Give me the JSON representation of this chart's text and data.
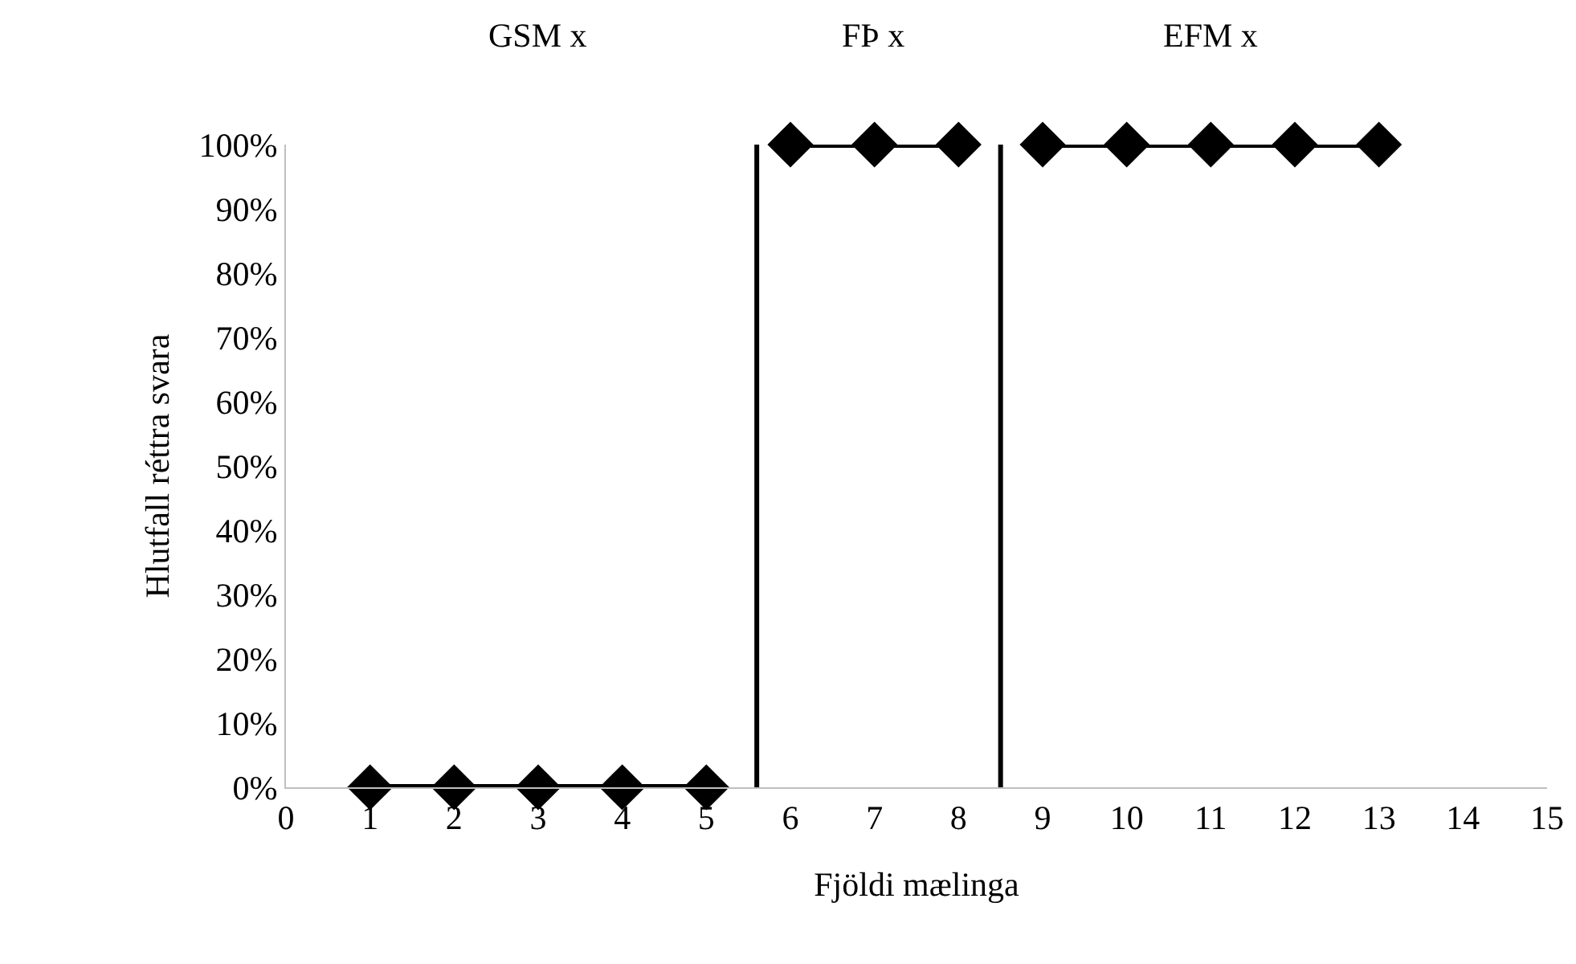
{
  "chart_data": {
    "type": "line",
    "xlabel": "Fjöldi mælinga",
    "ylabel": "Hlutfall réttra svara",
    "xlim": [
      0,
      15
    ],
    "xticks": [
      0,
      1,
      2,
      3,
      4,
      5,
      6,
      7,
      8,
      9,
      10,
      11,
      12,
      13,
      14,
      15
    ],
    "ylim": [
      0,
      100
    ],
    "yticks": [
      {
        "value": 0,
        "label": "0%"
      },
      {
        "value": 10,
        "label": "10%"
      },
      {
        "value": 20,
        "label": "20%"
      },
      {
        "value": 30,
        "label": "30%"
      },
      {
        "value": 40,
        "label": "40%"
      },
      {
        "value": 50,
        "label": "50%"
      },
      {
        "value": 60,
        "label": "60%"
      },
      {
        "value": 70,
        "label": "70%"
      },
      {
        "value": 80,
        "label": "80%"
      },
      {
        "value": 90,
        "label": "90%"
      },
      {
        "value": 100,
        "label": "100%"
      }
    ],
    "grid": false,
    "legend": false,
    "marker": "diamond",
    "line_style": "solid",
    "series": [
      {
        "color": "#000000",
        "x": [
          1,
          2,
          3,
          4,
          5
        ],
        "values": [
          0,
          0,
          0,
          0,
          0
        ]
      },
      {
        "color": "#000000",
        "x": [
          6,
          7,
          8
        ],
        "values": [
          100,
          100,
          100
        ]
      },
      {
        "color": "#000000",
        "x": [
          9,
          10,
          11,
          12,
          13
        ],
        "values": [
          100,
          100,
          100,
          100,
          100
        ]
      }
    ],
    "annotations": [
      "GSM x",
      "FÞ x",
      "EFM x"
    ],
    "ref_lines": [
      {
        "axis": "x",
        "value": 5.6,
        "color": "#000000"
      },
      {
        "axis": "x",
        "value": 8.5,
        "color": "#000000"
      }
    ]
  }
}
